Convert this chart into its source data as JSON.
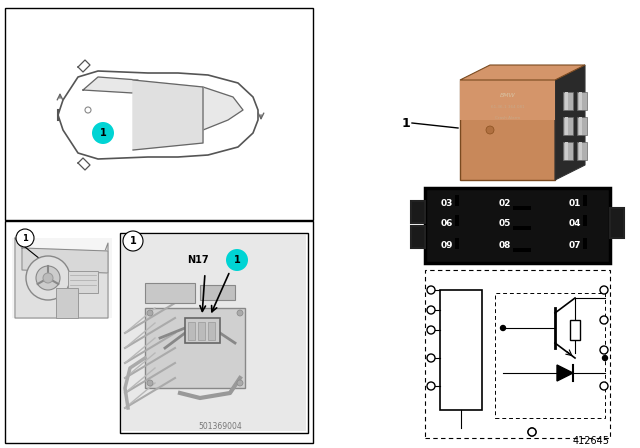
{
  "bg_color": "#ffffff",
  "cyan_color": "#00d4d4",
  "relay_front_color": "#c8885a",
  "relay_side_color": "#3a3a3a",
  "relay_top_color": "#d4956a",
  "relay_shadow_color": "#8b5c30",
  "pin_grid_bg": "#111111",
  "diagram_number": "412645",
  "part_number_label": "1",
  "n17_label": "N17",
  "photo_watermark": "501369004",
  "car_body_color": "#f0f0f0",
  "sketch_color": "#cccccc"
}
